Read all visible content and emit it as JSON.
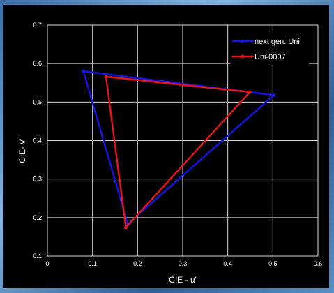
{
  "chart_data": {
    "type": "scatter",
    "title": "",
    "xlabel": "CIE - u'",
    "ylabel": "CIE- v'",
    "xlim": [
      0,
      0.6
    ],
    "ylim": [
      0.1,
      0.7
    ],
    "xticks": [
      "0",
      "0.1",
      "0.2",
      "0.3",
      "0.4",
      "0.5",
      "0.6"
    ],
    "yticks": [
      "0.1",
      "0.2",
      "0.3",
      "0.4",
      "0.5",
      "0.6",
      "0.7"
    ],
    "grid": true,
    "legend_position": "top-right",
    "series": [
      {
        "name": "next gen. Uni",
        "color": "#1414e6",
        "points": [
          [
            0.08,
            0.58
          ],
          [
            0.502,
            0.518
          ],
          [
            0.178,
            0.183
          ],
          [
            0.08,
            0.58
          ]
        ]
      },
      {
        "name": "Uni-0007",
        "color": "#e61414",
        "points": [
          [
            0.13,
            0.566
          ],
          [
            0.449,
            0.526
          ],
          [
            0.174,
            0.174
          ],
          [
            0.13,
            0.566
          ]
        ]
      }
    ]
  }
}
